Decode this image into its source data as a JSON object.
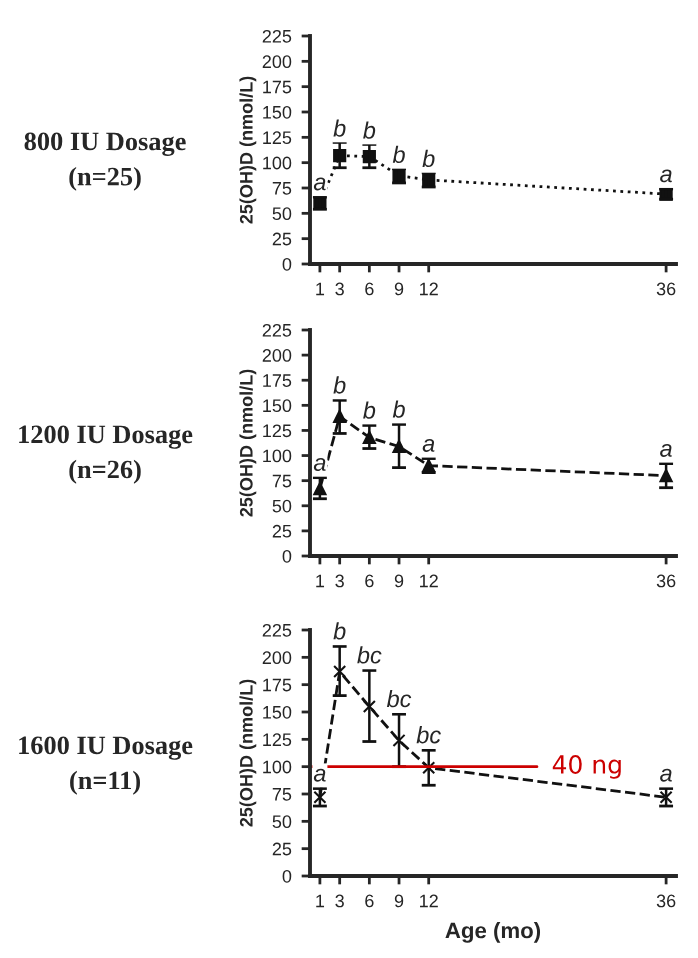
{
  "chart_data": [
    {
      "type": "line",
      "title": "800 IU Dosage\n(n=25)",
      "ylabel": "25(OH)D (nmol/L)",
      "x": [
        1,
        3,
        6,
        9,
        12,
        36
      ],
      "xlim": [
        0,
        37
      ],
      "xticks": [
        1,
        3,
        6,
        9,
        12,
        36
      ],
      "ylim": [
        0,
        225
      ],
      "yticks": [
        0,
        25,
        50,
        75,
        100,
        125,
        150,
        175,
        200,
        225
      ],
      "marker": "square",
      "line_style": "dotted",
      "grid": false,
      "series": [
        {
          "color": "#111111",
          "values": [
            60,
            107,
            106,
            87,
            83,
            69
          ],
          "errors": [
            [
              54,
              66
            ],
            [
              95,
              120
            ],
            [
              95,
              118
            ],
            [
              80,
              94
            ],
            [
              76,
              90
            ],
            [
              64,
              74
            ]
          ]
        }
      ],
      "annotations": [
        {
          "text": "a",
          "x": 1,
          "y": 68
        },
        {
          "text": "b",
          "x": 3,
          "y": 121
        },
        {
          "text": "b",
          "x": 6,
          "y": 119
        },
        {
          "text": "b",
          "x": 9,
          "y": 95
        },
        {
          "text": "b",
          "x": 12,
          "y": 91
        },
        {
          "text": "a",
          "x": 36,
          "y": 76
        }
      ]
    },
    {
      "type": "line",
      "title": "1200 IU Dosage\n(n=26)",
      "ylabel": "25(OH)D (nmol/L)",
      "x": [
        1,
        3,
        6,
        9,
        12,
        36
      ],
      "xlim": [
        0,
        37
      ],
      "xticks": [
        1,
        3,
        6,
        9,
        12,
        36
      ],
      "ylim": [
        0,
        225
      ],
      "yticks": [
        0,
        25,
        50,
        75,
        100,
        125,
        150,
        175,
        200,
        225
      ],
      "marker": "triangle",
      "line_style": "dashed",
      "grid": false,
      "series": [
        {
          "color": "#111111",
          "values": [
            67,
            139,
            118,
            109,
            90,
            80
          ],
          "errors": [
            [
              57,
              78
            ],
            [
              122,
              155
            ],
            [
              107,
              130
            ],
            [
              88,
              131
            ],
            [
              83,
              97
            ],
            [
              68,
              92
            ]
          ]
        }
      ],
      "annotations": [
        {
          "text": "a",
          "x": 1,
          "y": 80
        },
        {
          "text": "b",
          "x": 3,
          "y": 157
        },
        {
          "text": "b",
          "x": 6,
          "y": 132
        },
        {
          "text": "b",
          "x": 9,
          "y": 133
        },
        {
          "text": "a",
          "x": 12,
          "y": 99
        },
        {
          "text": "a",
          "x": 36,
          "y": 94
        }
      ]
    },
    {
      "type": "line",
      "title": "1600 IU Dosage\n(n=11)",
      "ylabel": "25(OH)D (nmol/L)",
      "xlabel": "Age (mo)",
      "x": [
        1,
        3,
        6,
        9,
        12,
        36
      ],
      "xlim": [
        0,
        37
      ],
      "xticks": [
        1,
        3,
        6,
        9,
        12,
        36
      ],
      "ylim": [
        0,
        225
      ],
      "yticks": [
        0,
        25,
        50,
        75,
        100,
        125,
        150,
        175,
        200,
        225
      ],
      "marker": "cross",
      "line_style": "dashed",
      "grid": false,
      "series": [
        {
          "color": "#111111",
          "values": [
            72,
            187,
            155,
            124,
            99,
            72
          ],
          "errors": [
            [
              64,
              80
            ],
            [
              165,
              210
            ],
            [
              123,
              188
            ],
            [
              100,
              148
            ],
            [
              83,
              115
            ],
            [
              64,
              80
            ]
          ]
        }
      ],
      "ref_lines": [
        {
          "axis": "y",
          "value": 100,
          "label": "40 ng",
          "color": "#cc0000",
          "line_style": "solid"
        }
      ],
      "annotations": [
        {
          "text": "a",
          "x": 1,
          "y": 82
        },
        {
          "text": "b",
          "x": 3,
          "y": 212
        },
        {
          "text": "bc",
          "x": 6,
          "y": 190
        },
        {
          "text": "bc",
          "x": 9,
          "y": 150
        },
        {
          "text": "bc",
          "x": 12,
          "y": 117
        },
        {
          "text": "a",
          "x": 36,
          "y": 82
        }
      ]
    }
  ]
}
